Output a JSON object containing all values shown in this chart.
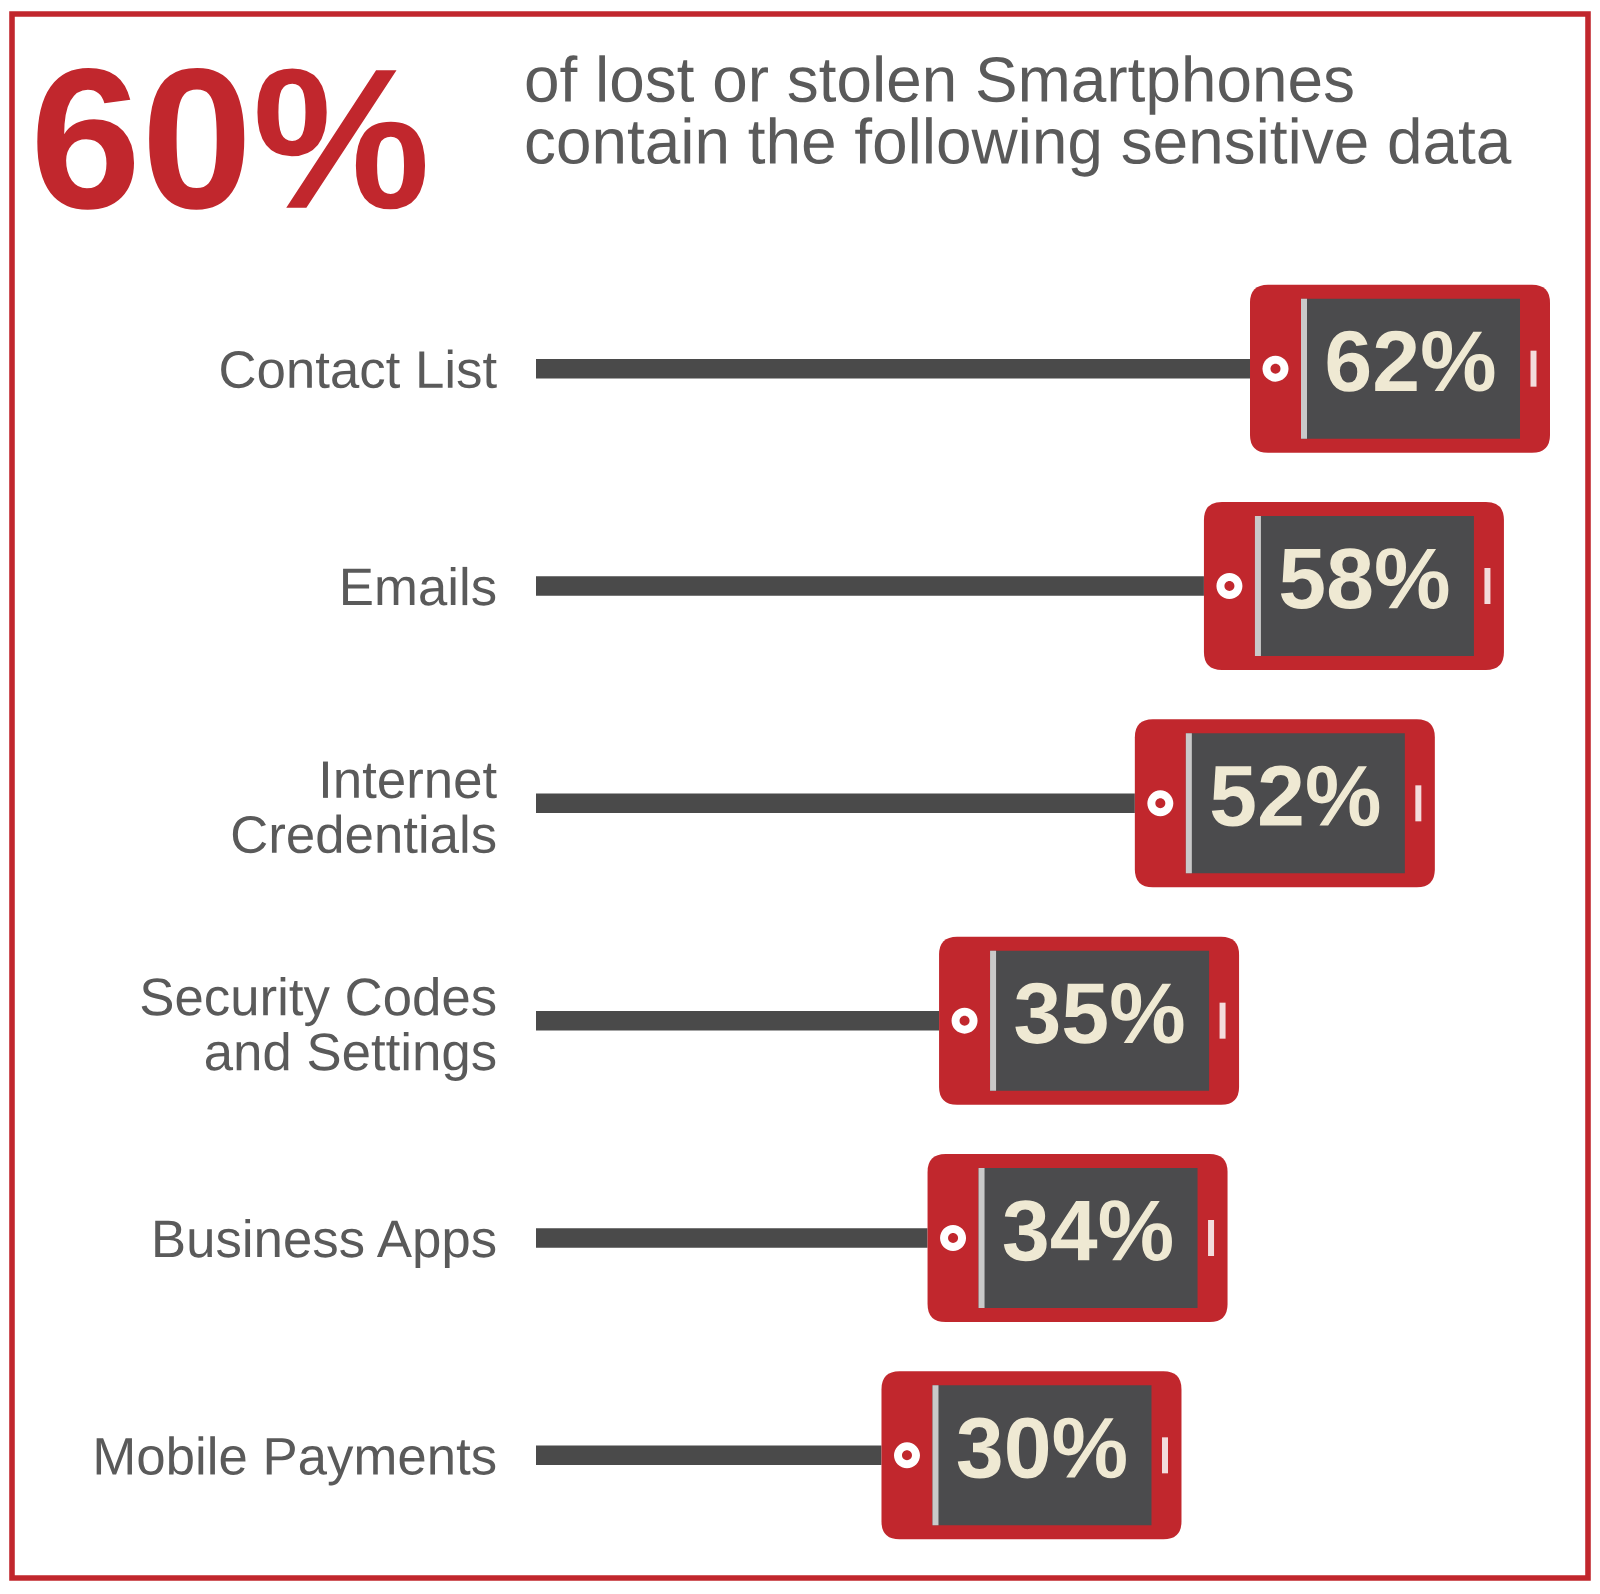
{
  "chart_data": {
    "type": "bar",
    "orientation": "horizontal",
    "title": "60%",
    "subtitle": "of lost or stolen Smartphones\ncontain the following sensitive data",
    "categories": [
      "Contact List",
      "Emails",
      "Internet\nCredentials",
      "Security Codes\nand Settings",
      "Business Apps",
      "Mobile Payments"
    ],
    "values": [
      62,
      58,
      52,
      35,
      34,
      30
    ],
    "value_labels": [
      "62%",
      "58%",
      "52%",
      "35%",
      "34%",
      "30%"
    ],
    "color": "#4a4a4a",
    "tick_labels": "y",
    "grid": false,
    "legend": false
  }
}
